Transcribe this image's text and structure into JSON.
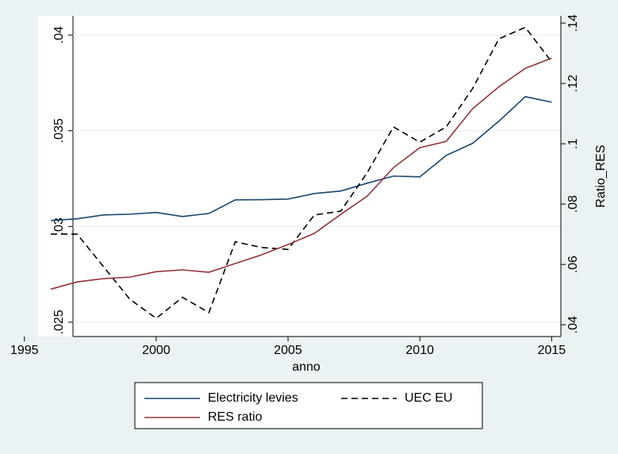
{
  "chart_data": {
    "type": "line",
    "x_label": "anno",
    "y2_label": "Ratio_RES",
    "x": [
      1996,
      1997,
      1998,
      1999,
      2000,
      2001,
      2002,
      2003,
      2004,
      2005,
      2006,
      2007,
      2008,
      2009,
      2010,
      2011,
      2012,
      2013,
      2014,
      2015
    ],
    "series": [
      {
        "name": "Electricity levies",
        "color": "#1a476f",
        "dash": false,
        "values": [
          0.03031,
          0.0304,
          0.0306,
          0.03064,
          0.03073,
          0.03052,
          0.03068,
          0.03139,
          0.0314,
          0.03143,
          0.03172,
          0.03185,
          0.03226,
          0.03263,
          0.03259,
          0.03371,
          0.03434,
          0.0355,
          0.03678,
          0.03649
        ]
      },
      {
        "name": "UEC EU",
        "color": "#000000",
        "dash": true,
        "values": [
          0.0296,
          0.0296,
          0.0279,
          0.0262,
          0.0252,
          0.0263,
          0.0255,
          0.0292,
          0.0289,
          0.0288,
          0.0306,
          0.0308,
          0.0328,
          0.0352,
          0.0344,
          0.0352,
          0.0372,
          0.0398,
          0.0404,
          0.0386
        ]
      },
      {
        "name": "RES ratio",
        "color": "#90353b",
        "dash": false,
        "axis": "y2",
        "values": [
          0.0518,
          0.0542,
          0.0553,
          0.0558,
          0.0576,
          0.0582,
          0.0574,
          0.0603,
          0.0632,
          0.0666,
          0.0703,
          0.0766,
          0.0826,
          0.0921,
          0.0987,
          0.1008,
          0.1116,
          0.1189,
          0.125,
          0.1284
        ]
      }
    ],
    "xlim": [
      1995.52,
      2015.35
    ],
    "xticks": [
      1995,
      2000,
      2005,
      2010,
      2015
    ],
    "ylim": [
      0.02425,
      0.041
    ],
    "yticks": [
      {
        "value": 0.025,
        "label": ".025"
      },
      {
        "value": 0.03,
        "label": ".03"
      },
      {
        "value": 0.035,
        "label": ".035"
      },
      {
        "value": 0.04,
        "label": ".04"
      }
    ],
    "y2lim": [
      0.0361,
      0.1424
    ],
    "y2ticks": [
      {
        "value": 0.04,
        "label": ".04"
      },
      {
        "value": 0.06,
        "label": ".06"
      },
      {
        "value": 0.08,
        "label": ".08"
      },
      {
        "value": 0.1,
        "label": ".1"
      },
      {
        "value": 0.12,
        "label": ".12"
      },
      {
        "value": 0.14,
        "label": ".14"
      }
    ],
    "grid": true
  }
}
